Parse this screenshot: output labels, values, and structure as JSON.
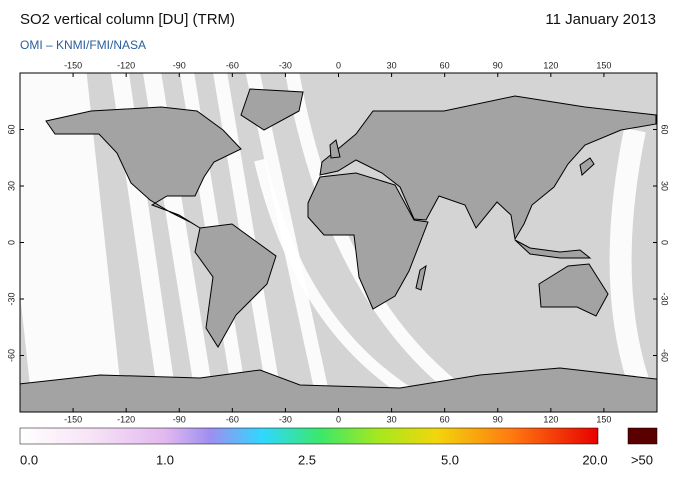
{
  "header": {
    "title": "SO2 vertical column [DU] (TRM)",
    "date": "11 January 2013",
    "credit": "OMI  –  KNMI/FMI/NASA"
  },
  "map": {
    "xlim": [
      -180,
      180
    ],
    "ylim": [
      -90,
      90
    ],
    "xticks": [
      -150,
      -120,
      -90,
      -60,
      -30,
      0,
      30,
      60,
      90,
      120,
      150
    ],
    "yticks": [
      60,
      30,
      0,
      -30,
      -60
    ]
  },
  "colorbar": {
    "labels": [
      "0.0",
      "1.0",
      "2.5",
      "5.0",
      "20.0",
      ">50"
    ]
  }
}
